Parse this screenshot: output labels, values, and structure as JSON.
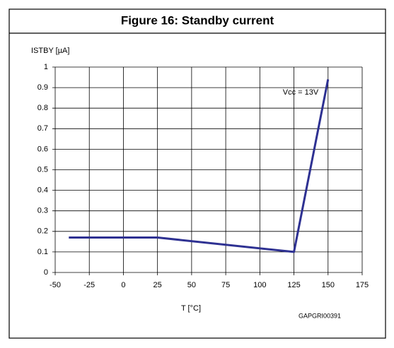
{
  "chart_data": {
    "type": "line",
    "title": "Figure 16: Standby current",
    "ylabel": "ISTBY [µA]",
    "xlabel": "T [°C]",
    "code": "GAPGRI00391",
    "x": [
      -40,
      25,
      125,
      150
    ],
    "series": [
      {
        "name": "Vcc = 13V",
        "color": "#2e3192",
        "values": [
          0.17,
          0.17,
          0.1,
          0.94
        ]
      }
    ],
    "xlim": [
      -50,
      175
    ],
    "xticks": [
      -50,
      -25,
      0,
      25,
      50,
      75,
      100,
      125,
      150,
      175
    ],
    "ylim": [
      0,
      1
    ],
    "yticks": [
      0,
      0.1,
      0.2,
      0.3,
      0.4,
      0.5,
      0.6,
      0.7,
      0.8,
      0.9,
      1
    ],
    "grid": true
  }
}
